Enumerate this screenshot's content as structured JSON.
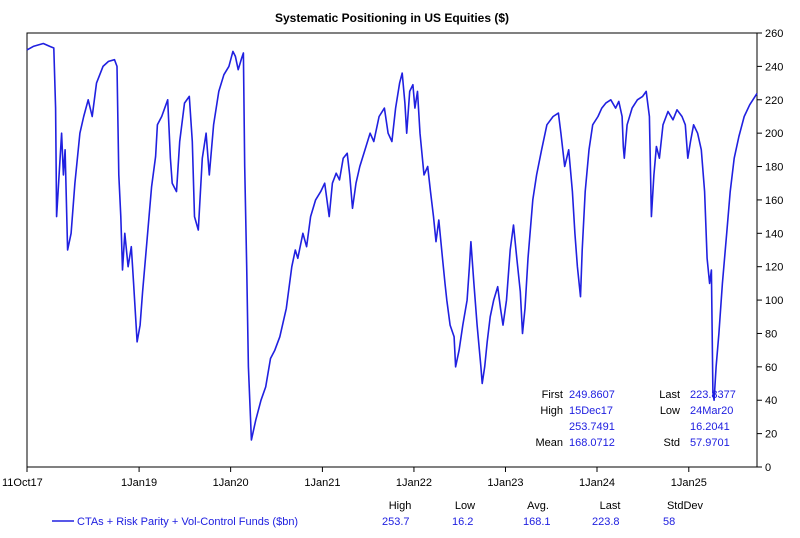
{
  "chart_data": {
    "type": "line",
    "title": "Systematic Positioning in US Equities ($)",
    "xlabel": "",
    "ylabel": "",
    "x_start": "2017-10-11",
    "x_end": "2025-09-30",
    "xticks": [
      {
        "date": "2017-10-11",
        "label": "11Oct17"
      },
      {
        "date": "2019-01-01",
        "label": "1Jan19"
      },
      {
        "date": "2020-01-01",
        "label": "1Jan20"
      },
      {
        "date": "2021-01-01",
        "label": "1Jan21"
      },
      {
        "date": "2022-01-01",
        "label": "1Jan22"
      },
      {
        "date": "2023-01-01",
        "label": "1Jan23"
      },
      {
        "date": "2024-01-01",
        "label": "1Jan24"
      },
      {
        "date": "2025-01-01",
        "label": "1Jan25"
      }
    ],
    "ylim": [
      0,
      260
    ],
    "yticks": [
      0,
      20,
      40,
      60,
      80,
      100,
      120,
      140,
      160,
      180,
      200,
      220,
      240,
      260
    ],
    "y_axis_side": "right",
    "grid": false,
    "series_color": "#2020e0",
    "series": [
      {
        "name": "CTAs + Risk Parity + Vol-Control Funds ($bn)",
        "points": [
          [
            "2017-10-11",
            249.9
          ],
          [
            "2017-11-05",
            252
          ],
          [
            "2017-12-15",
            253.7
          ],
          [
            "2018-01-10",
            252
          ],
          [
            "2018-01-26",
            251
          ],
          [
            "2018-02-02",
            215
          ],
          [
            "2018-02-06",
            150
          ],
          [
            "2018-02-12",
            165
          ],
          [
            "2018-02-20",
            185
          ],
          [
            "2018-02-26",
            200
          ],
          [
            "2018-03-05",
            175
          ],
          [
            "2018-03-12",
            190
          ],
          [
            "2018-03-22",
            130
          ],
          [
            "2018-04-05",
            140
          ],
          [
            "2018-04-20",
            170
          ],
          [
            "2018-05-10",
            200
          ],
          [
            "2018-05-25",
            210
          ],
          [
            "2018-06-12",
            220
          ],
          [
            "2018-06-28",
            210
          ],
          [
            "2018-07-15",
            230
          ],
          [
            "2018-08-10",
            240
          ],
          [
            "2018-09-01",
            243
          ],
          [
            "2018-09-25",
            244
          ],
          [
            "2018-10-05",
            240
          ],
          [
            "2018-10-12",
            175
          ],
          [
            "2018-10-20",
            150
          ],
          [
            "2018-10-27",
            118
          ],
          [
            "2018-11-05",
            140
          ],
          [
            "2018-11-18",
            120
          ],
          [
            "2018-12-01",
            132
          ],
          [
            "2018-12-10",
            110
          ],
          [
            "2018-12-18",
            90
          ],
          [
            "2018-12-24",
            75
          ],
          [
            "2019-01-05",
            85
          ],
          [
            "2019-01-15",
            105
          ],
          [
            "2019-02-01",
            135
          ],
          [
            "2019-02-20",
            168
          ],
          [
            "2019-03-08",
            186
          ],
          [
            "2019-03-15",
            205
          ],
          [
            "2019-04-01",
            210
          ],
          [
            "2019-04-25",
            220
          ],
          [
            "2019-05-06",
            185
          ],
          [
            "2019-05-13",
            170
          ],
          [
            "2019-05-30",
            165
          ],
          [
            "2019-06-12",
            195
          ],
          [
            "2019-07-01",
            218
          ],
          [
            "2019-07-20",
            222
          ],
          [
            "2019-08-01",
            195
          ],
          [
            "2019-08-10",
            150
          ],
          [
            "2019-08-25",
            142
          ],
          [
            "2019-09-10",
            185
          ],
          [
            "2019-09-25",
            200
          ],
          [
            "2019-10-08",
            175
          ],
          [
            "2019-10-25",
            205
          ],
          [
            "2019-11-15",
            225
          ],
          [
            "2019-12-05",
            235
          ],
          [
            "2019-12-25",
            240
          ],
          [
            "2020-01-10",
            249
          ],
          [
            "2020-01-20",
            246
          ],
          [
            "2020-01-31",
            238
          ],
          [
            "2020-02-14",
            245
          ],
          [
            "2020-02-21",
            248
          ],
          [
            "2020-02-26",
            180
          ],
          [
            "2020-03-05",
            120
          ],
          [
            "2020-03-12",
            60
          ],
          [
            "2020-03-24",
            16.2
          ],
          [
            "2020-04-10",
            28
          ],
          [
            "2020-05-01",
            40
          ],
          [
            "2020-05-20",
            48
          ],
          [
            "2020-06-08",
            65
          ],
          [
            "2020-06-25",
            70
          ],
          [
            "2020-07-15",
            78
          ],
          [
            "2020-08-10",
            95
          ],
          [
            "2020-09-01",
            120
          ],
          [
            "2020-09-15",
            130
          ],
          [
            "2020-09-25",
            125
          ],
          [
            "2020-10-15",
            140
          ],
          [
            "2020-10-30",
            132
          ],
          [
            "2020-11-15",
            150
          ],
          [
            "2020-12-05",
            160
          ],
          [
            "2020-12-25",
            165
          ],
          [
            "2021-01-10",
            170
          ],
          [
            "2021-01-28",
            150
          ],
          [
            "2021-02-10",
            170
          ],
          [
            "2021-02-25",
            176
          ],
          [
            "2021-03-10",
            172
          ],
          [
            "2021-03-25",
            185
          ],
          [
            "2021-04-10",
            188
          ],
          [
            "2021-04-20",
            175
          ],
          [
            "2021-05-01",
            155
          ],
          [
            "2021-05-15",
            170
          ],
          [
            "2021-05-30",
            180
          ],
          [
            "2021-06-20",
            190
          ],
          [
            "2021-07-10",
            200
          ],
          [
            "2021-07-25",
            195
          ],
          [
            "2021-08-15",
            210
          ],
          [
            "2021-09-05",
            215
          ],
          [
            "2021-09-20",
            200
          ],
          [
            "2021-10-05",
            195
          ],
          [
            "2021-10-20",
            215
          ],
          [
            "2021-11-05",
            230
          ],
          [
            "2021-11-15",
            236
          ],
          [
            "2021-11-26",
            218
          ],
          [
            "2021-12-03",
            200
          ],
          [
            "2021-12-15",
            225
          ],
          [
            "2021-12-28",
            229
          ],
          [
            "2022-01-05",
            215
          ],
          [
            "2022-01-15",
            225
          ],
          [
            "2022-01-25",
            200
          ],
          [
            "2022-02-10",
            175
          ],
          [
            "2022-02-25",
            180
          ],
          [
            "2022-03-08",
            165
          ],
          [
            "2022-03-20",
            150
          ],
          [
            "2022-03-30",
            135
          ],
          [
            "2022-04-10",
            148
          ],
          [
            "2022-04-25",
            125
          ],
          [
            "2022-05-05",
            110
          ],
          [
            "2022-05-12",
            100
          ],
          [
            "2022-05-25",
            85
          ],
          [
            "2022-06-10",
            78
          ],
          [
            "2022-06-16",
            60
          ],
          [
            "2022-06-30",
            70
          ],
          [
            "2022-07-15",
            85
          ],
          [
            "2022-08-01",
            100
          ],
          [
            "2022-08-10",
            120
          ],
          [
            "2022-08-16",
            135
          ],
          [
            "2022-08-28",
            110
          ],
          [
            "2022-09-10",
            85
          ],
          [
            "2022-09-25",
            60
          ],
          [
            "2022-09-30",
            50
          ],
          [
            "2022-10-10",
            60
          ],
          [
            "2022-10-20",
            75
          ],
          [
            "2022-11-01",
            90
          ],
          [
            "2022-11-15",
            100
          ],
          [
            "2022-12-01",
            108
          ],
          [
            "2022-12-12",
            95
          ],
          [
            "2022-12-22",
            85
          ],
          [
            "2023-01-05",
            100
          ],
          [
            "2023-01-20",
            130
          ],
          [
            "2023-02-02",
            145
          ],
          [
            "2023-02-15",
            125
          ],
          [
            "2023-03-01",
            105
          ],
          [
            "2023-03-10",
            80
          ],
          [
            "2023-03-20",
            95
          ],
          [
            "2023-04-01",
            125
          ],
          [
            "2023-04-20",
            160
          ],
          [
            "2023-05-05",
            175
          ],
          [
            "2023-05-25",
            190
          ],
          [
            "2023-06-15",
            205
          ],
          [
            "2023-07-10",
            210
          ],
          [
            "2023-07-31",
            212
          ],
          [
            "2023-08-10",
            200
          ],
          [
            "2023-08-25",
            180
          ],
          [
            "2023-09-10",
            190
          ],
          [
            "2023-09-25",
            165
          ],
          [
            "2023-10-05",
            140
          ],
          [
            "2023-10-15",
            120
          ],
          [
            "2023-10-27",
            102
          ],
          [
            "2023-11-03",
            130
          ],
          [
            "2023-11-15",
            165
          ],
          [
            "2023-11-30",
            190
          ],
          [
            "2023-12-15",
            205
          ],
          [
            "2024-01-05",
            210
          ],
          [
            "2024-01-20",
            215
          ],
          [
            "2024-02-05",
            218
          ],
          [
            "2024-02-25",
            220
          ],
          [
            "2024-03-15",
            215
          ],
          [
            "2024-03-28",
            219
          ],
          [
            "2024-04-10",
            210
          ],
          [
            "2024-04-15",
            192
          ],
          [
            "2024-04-19",
            185
          ],
          [
            "2024-04-30",
            205
          ],
          [
            "2024-05-20",
            215
          ],
          [
            "2024-06-10",
            220
          ],
          [
            "2024-07-01",
            222
          ],
          [
            "2024-07-15",
            225
          ],
          [
            "2024-07-28",
            210
          ],
          [
            "2024-08-05",
            150
          ],
          [
            "2024-08-15",
            175
          ],
          [
            "2024-08-25",
            192
          ],
          [
            "2024-09-06",
            185
          ],
          [
            "2024-09-20",
            205
          ],
          [
            "2024-10-10",
            213
          ],
          [
            "2024-10-30",
            208
          ],
          [
            "2024-11-15",
            214
          ],
          [
            "2024-12-05",
            210
          ],
          [
            "2024-12-18",
            205
          ],
          [
            "2024-12-28",
            185
          ],
          [
            "2025-01-08",
            195
          ],
          [
            "2025-01-20",
            205
          ],
          [
            "2025-02-05",
            200
          ],
          [
            "2025-02-20",
            190
          ],
          [
            "2025-03-05",
            165
          ],
          [
            "2025-03-15",
            125
          ],
          [
            "2025-03-25",
            110
          ],
          [
            "2025-04-01",
            118
          ],
          [
            "2025-04-07",
            45
          ],
          [
            "2025-04-12",
            40
          ],
          [
            "2025-04-20",
            60
          ],
          [
            "2025-05-01",
            80
          ],
          [
            "2025-05-15",
            110
          ],
          [
            "2025-06-01",
            140
          ],
          [
            "2025-06-15",
            165
          ],
          [
            "2025-07-01",
            185
          ],
          [
            "2025-07-20",
            198
          ],
          [
            "2025-08-10",
            210
          ],
          [
            "2025-09-01",
            217
          ],
          [
            "2025-09-30",
            223.8
          ]
        ]
      }
    ]
  },
  "stats_box": {
    "first_label": "First",
    "first_value": "249.8607",
    "last_label": "Last",
    "last_value": "223.8377",
    "high_label": "High",
    "high_date": "15Dec17",
    "high_value": "253.7491",
    "low_label": "Low",
    "low_date": "24Mar20",
    "low_value": "16.2041",
    "mean_label": "Mean",
    "mean_value": "168.0712",
    "std_label": "Std",
    "std_value": "57.9701"
  },
  "legend": {
    "headers": [
      "High",
      "Low",
      "Avg.",
      "Last",
      "StdDev"
    ],
    "label": "CTAs + Risk Parity + Vol-Control Funds ($bn)",
    "values": [
      "253.7",
      "16.2",
      "168.1",
      "223.8",
      "58"
    ]
  }
}
